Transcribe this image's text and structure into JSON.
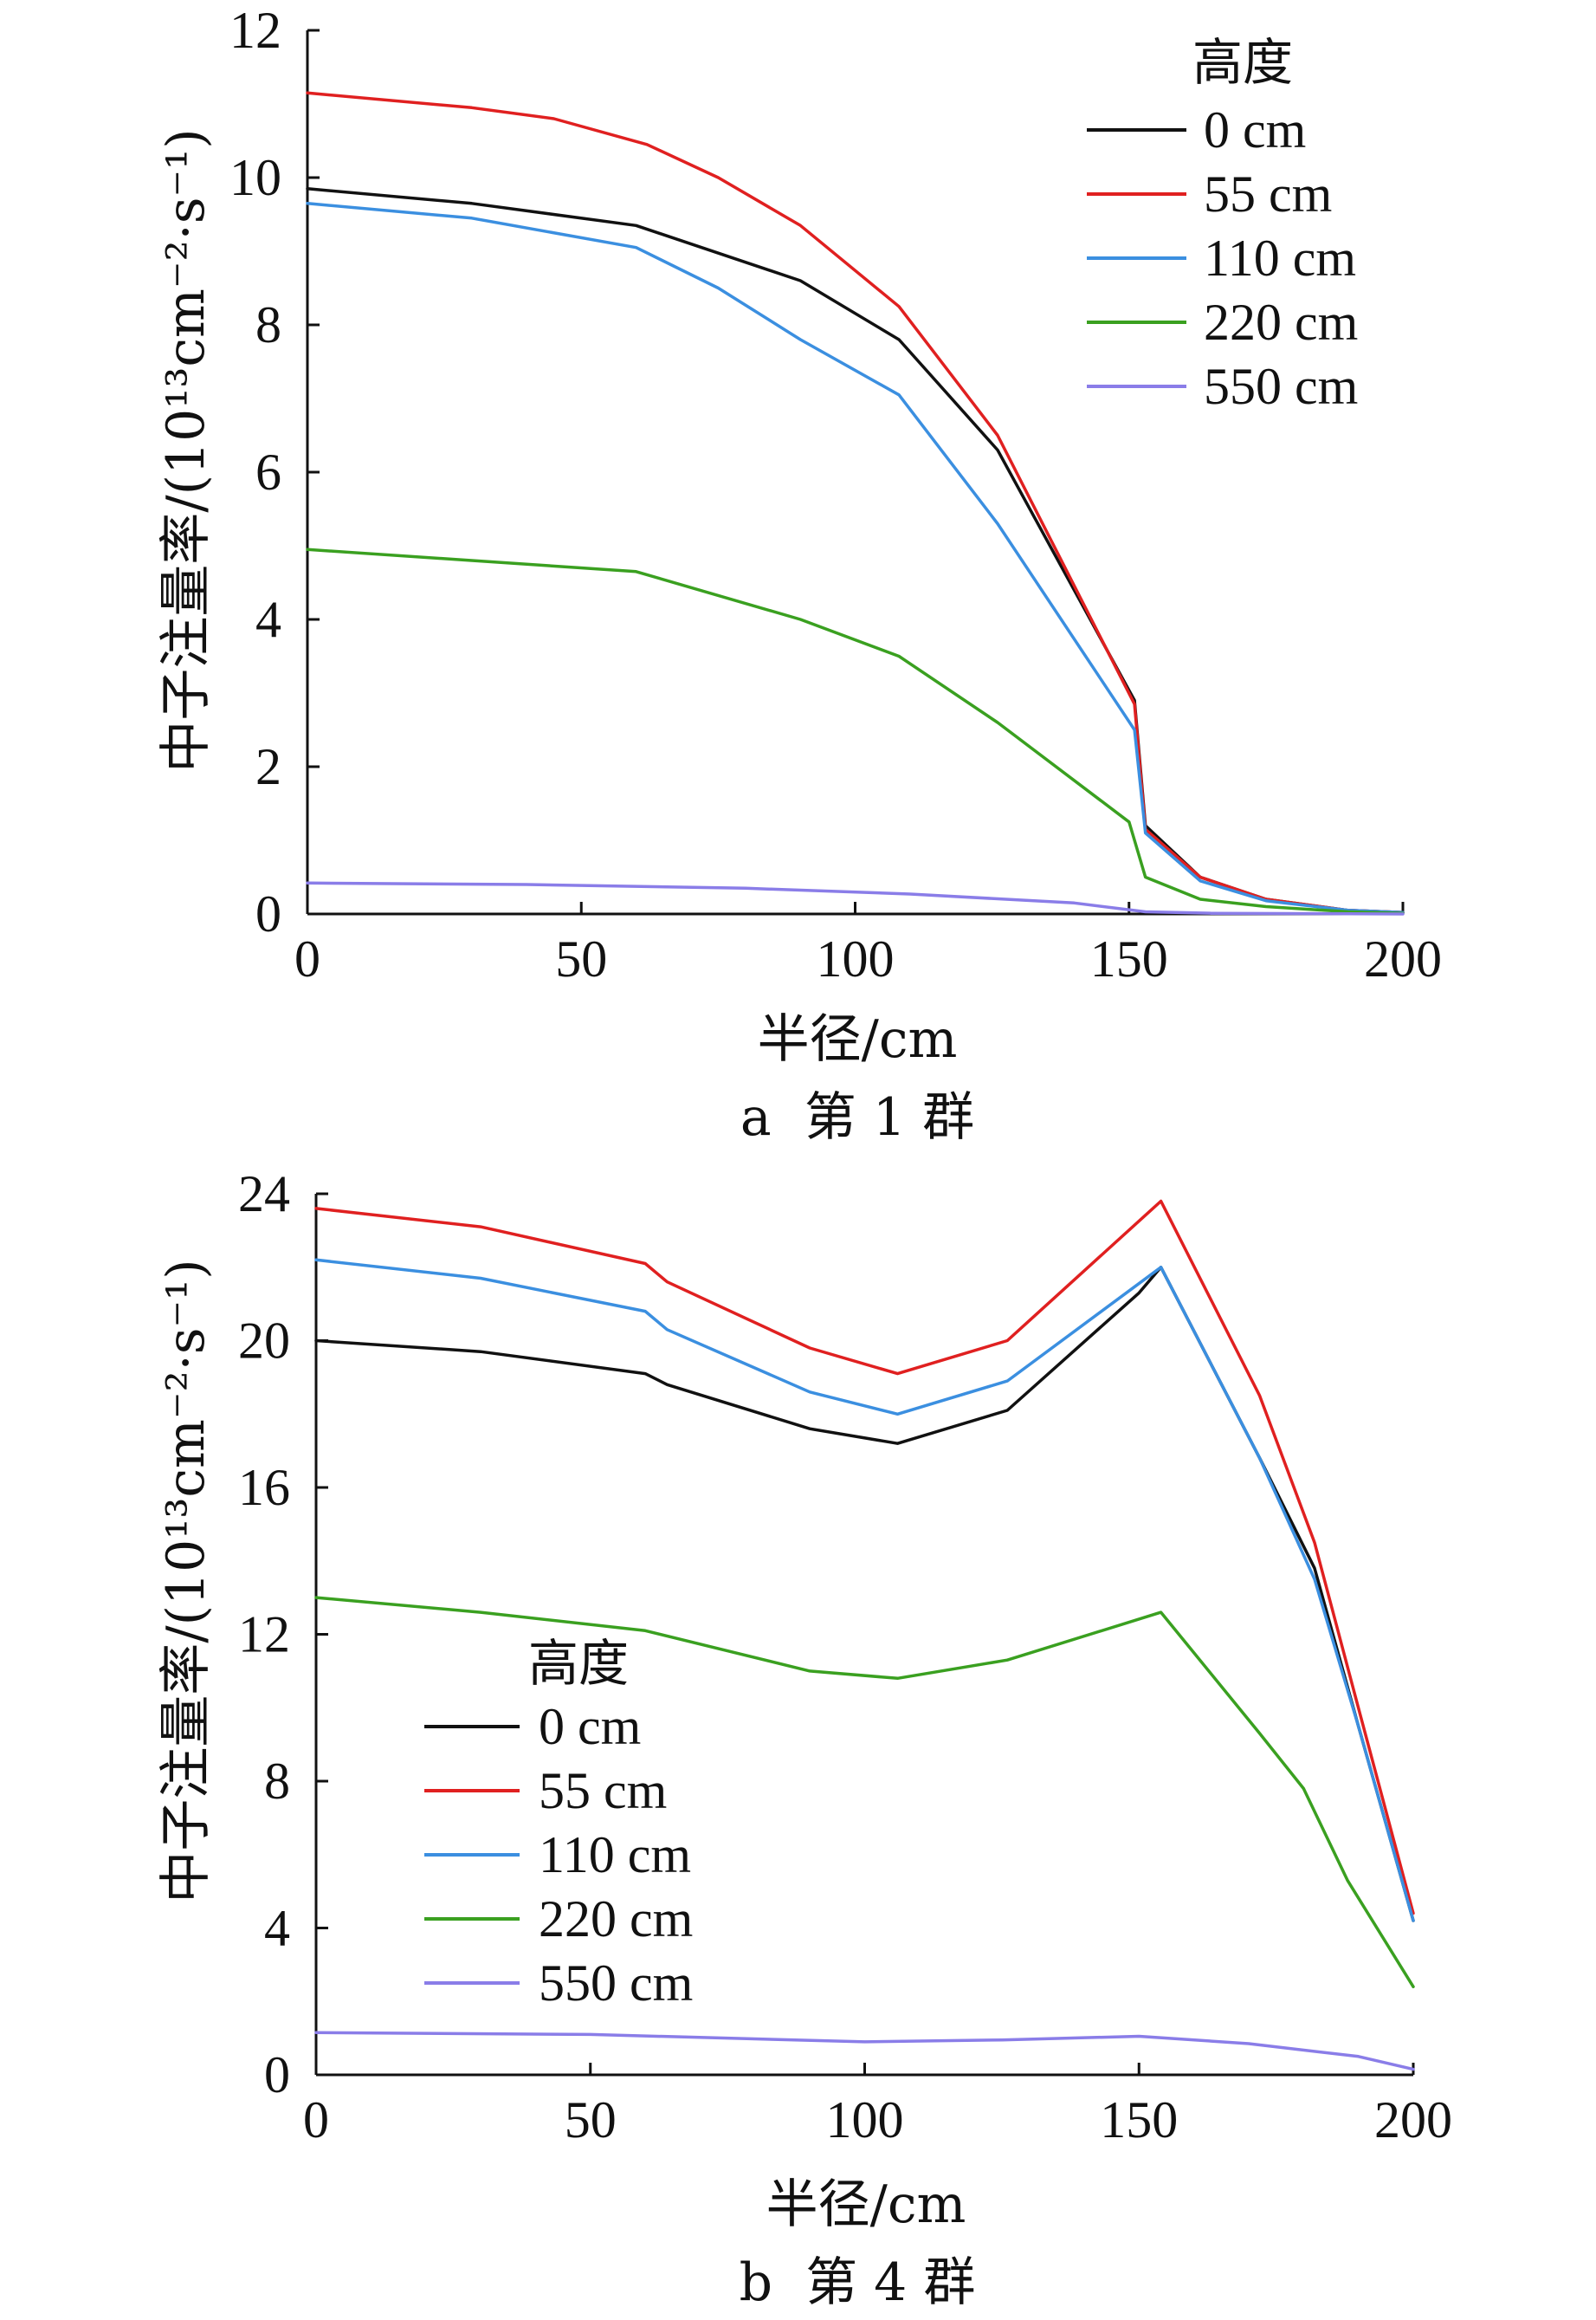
{
  "chart_data": [
    {
      "type": "line",
      "caption": "a  第 1 群",
      "xlabel": "半径/cm",
      "ylabel": "中子注量率/(10¹³cm⁻²·s⁻¹)",
      "xlim": [
        0,
        200
      ],
      "ylim": [
        0,
        12
      ],
      "xticks": [
        0,
        50,
        100,
        150,
        200
      ],
      "yticks": [
        0,
        2,
        4,
        6,
        8,
        10,
        12
      ],
      "legend_title": "高度",
      "legend_position": "top-right",
      "grid": false,
      "series": [
        {
          "name": "0 cm",
          "color": "#111111",
          "x": [
            0,
            30,
            60,
            90,
            108,
            126,
            151,
            153,
            163,
            175,
            190,
            200
          ],
          "y": [
            9.85,
            9.65,
            9.35,
            8.6,
            7.8,
            6.3,
            2.9,
            1.2,
            0.5,
            0.2,
            0.05,
            0.02
          ]
        },
        {
          "name": "55 cm",
          "color": "#e02020",
          "x": [
            0,
            30,
            45,
            62,
            75,
            90,
            108,
            126,
            151,
            153,
            163,
            175,
            190,
            200
          ],
          "y": [
            11.15,
            10.95,
            10.8,
            10.45,
            10.0,
            9.35,
            8.25,
            6.5,
            2.85,
            1.15,
            0.5,
            0.2,
            0.05,
            0.02
          ]
        },
        {
          "name": "110 cm",
          "color": "#3b8fe0",
          "x": [
            0,
            30,
            60,
            75,
            90,
            108,
            126,
            151,
            153,
            163,
            175,
            190,
            200
          ],
          "y": [
            9.65,
            9.45,
            9.05,
            8.5,
            7.8,
            7.05,
            5.3,
            2.5,
            1.1,
            0.45,
            0.18,
            0.05,
            0.02
          ]
        },
        {
          "name": "220 cm",
          "color": "#3aa020",
          "x": [
            0,
            30,
            60,
            90,
            108,
            126,
            150,
            153,
            163,
            175,
            190,
            200
          ],
          "y": [
            4.95,
            4.8,
            4.65,
            4.0,
            3.5,
            2.6,
            1.25,
            0.5,
            0.2,
            0.1,
            0.03,
            0.01
          ]
        },
        {
          "name": "550 cm",
          "color": "#8a7de8",
          "x": [
            0,
            40,
            80,
            110,
            140,
            153,
            165,
            200
          ],
          "y": [
            0.42,
            0.4,
            0.35,
            0.27,
            0.15,
            0.03,
            0.01,
            0.0
          ]
        }
      ]
    },
    {
      "type": "line",
      "caption": "b  第 4 群",
      "xlabel": "半径/cm",
      "ylabel": "中子注量率/(10¹³cm⁻²·s⁻¹)",
      "xlim": [
        0,
        200
      ],
      "ylim": [
        0,
        24
      ],
      "xticks": [
        0,
        50,
        100,
        150,
        200
      ],
      "yticks": [
        0,
        4,
        8,
        12,
        16,
        20,
        24
      ],
      "legend_title": "高度",
      "legend_position": "bottom-left",
      "grid": false,
      "series": [
        {
          "name": "0 cm",
          "color": "#111111",
          "x": [
            0,
            30,
            60,
            64,
            90,
            106,
            126,
            150,
            154,
            172,
            182,
            190,
            200
          ],
          "y": [
            20.0,
            19.7,
            19.1,
            18.8,
            17.6,
            17.2,
            18.1,
            21.3,
            22.0,
            16.8,
            13.8,
            9.5,
            4.2
          ]
        },
        {
          "name": "55 cm",
          "color": "#e02020",
          "x": [
            0,
            30,
            60,
            64,
            90,
            106,
            126,
            154,
            172,
            182,
            190,
            200
          ],
          "y": [
            23.6,
            23.1,
            22.1,
            21.6,
            19.8,
            19.1,
            20.0,
            23.8,
            18.5,
            14.5,
            10.0,
            4.4
          ]
        },
        {
          "name": "110 cm",
          "color": "#3b8fe0",
          "x": [
            0,
            30,
            60,
            64,
            90,
            106,
            126,
            154,
            172,
            182,
            190,
            200
          ],
          "y": [
            22.2,
            21.7,
            20.8,
            20.3,
            18.6,
            18.0,
            18.9,
            22.0,
            16.8,
            13.5,
            9.5,
            4.2
          ]
        },
        {
          "name": "220 cm",
          "color": "#3aa020",
          "x": [
            0,
            30,
            60,
            90,
            106,
            126,
            154,
            172,
            180,
            188,
            200
          ],
          "y": [
            13.0,
            12.6,
            12.1,
            11.0,
            10.8,
            11.3,
            12.6,
            9.3,
            7.8,
            5.3,
            2.4
          ]
        },
        {
          "name": "550 cm",
          "color": "#8a7de8",
          "x": [
            0,
            50,
            100,
            125,
            150,
            170,
            190,
            200
          ],
          "y": [
            1.15,
            1.1,
            0.9,
            0.95,
            1.05,
            0.85,
            0.5,
            0.15
          ]
        }
      ]
    }
  ]
}
